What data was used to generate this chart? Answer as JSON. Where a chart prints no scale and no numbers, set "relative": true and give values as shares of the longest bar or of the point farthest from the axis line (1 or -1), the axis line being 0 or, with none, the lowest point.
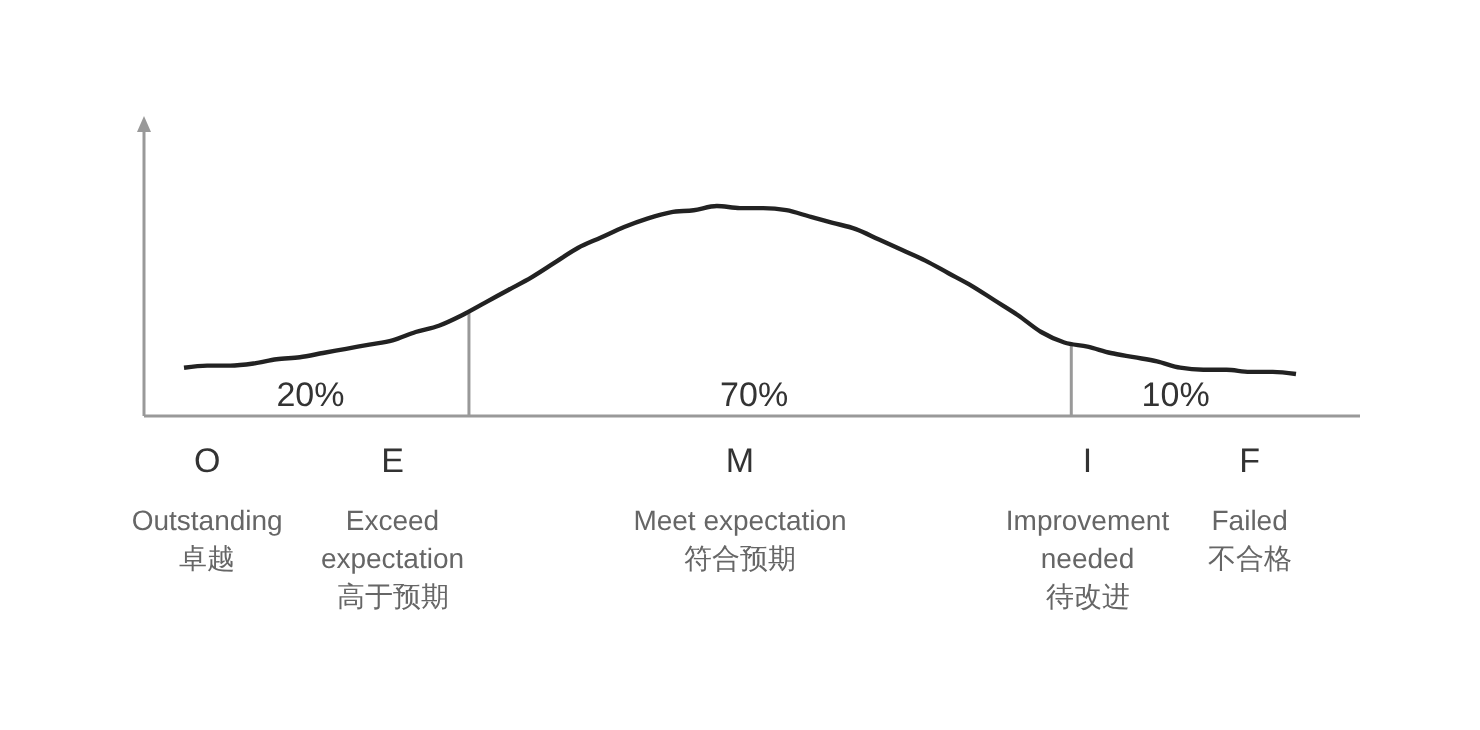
{
  "chart_data": {
    "type": "line",
    "relative": true,
    "categories": [
      null,
      "O\nOutstanding\n卓越",
      null,
      null,
      null,
      null,
      null,
      null,
      null,
      "E\nExceed\nexpectation\n高于预期",
      null,
      null,
      null,
      null,
      null,
      null,
      null,
      null,
      null,
      null,
      null,
      null,
      null,
      null,
      "M\nMeet expectation\n符合预期",
      null,
      null,
      null,
      null,
      null,
      null,
      null,
      null,
      null,
      null,
      null,
      null,
      null,
      null,
      "I\nImprovement\nneeded\n待改进",
      null,
      null,
      null,
      null,
      null,
      null,
      "F\nFailed\n不合格",
      null,
      null
    ],
    "series": [
      {
        "color": "#222222",
        "values": [
          0.23,
          0.24,
          0.24,
          0.25,
          0.27,
          0.28,
          0.3,
          0.32,
          0.34,
          0.36,
          0.4,
          0.43,
          0.48,
          0.54,
          0.6,
          0.66,
          0.73,
          0.8,
          0.85,
          0.9,
          0.94,
          0.97,
          0.98,
          1.0,
          0.99,
          0.99,
          0.98,
          0.95,
          0.92,
          0.89,
          0.84,
          0.79,
          0.74,
          0.68,
          0.62,
          0.55,
          0.48,
          0.4,
          0.35,
          0.33,
          0.3,
          0.28,
          0.26,
          0.23,
          0.22,
          0.22,
          0.21,
          0.21,
          0.2
        ]
      }
    ],
    "annotations": [
      "20%",
      "70%",
      "10%"
    ],
    "marker": "none",
    "line_style": "solid"
  }
}
